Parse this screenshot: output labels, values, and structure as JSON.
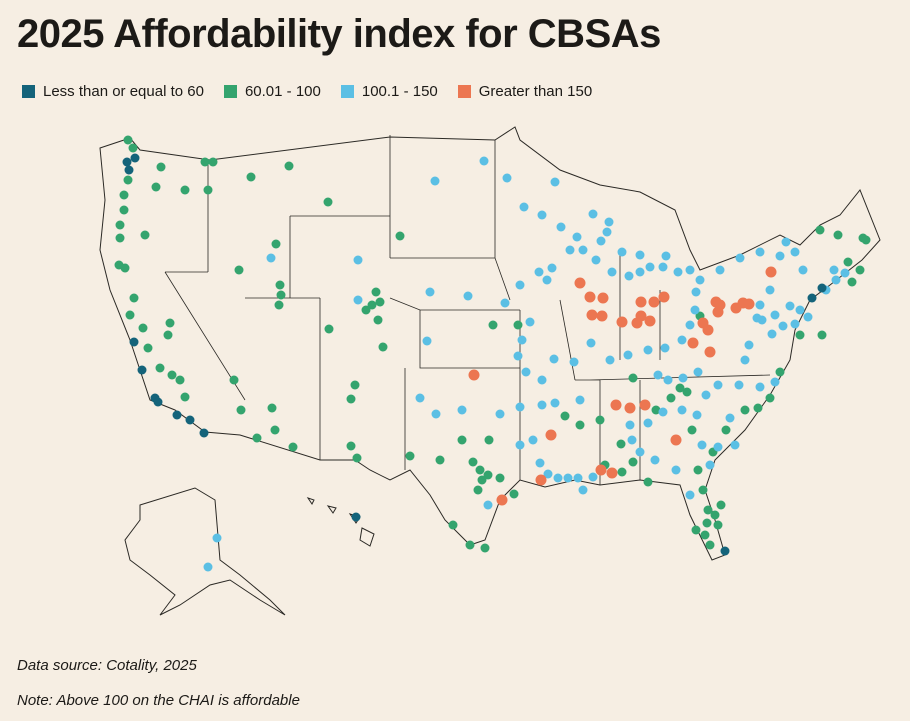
{
  "header": {
    "title": "2025 Affordability index for CBSAs"
  },
  "legend": {
    "items": [
      {
        "label": "Less than or equal to 60",
        "color": "#14637a"
      },
      {
        "label": "60.01 - 100",
        "color": "#34a46e"
      },
      {
        "label": "100.1 - 150",
        "color": "#5bbfe4"
      },
      {
        "label": "Greater than 150",
        "color": "#ec7651"
      }
    ]
  },
  "footer": {
    "source": "Data source: Cotality, 2025",
    "note": "Note: Above 100 on the CHAI is affordable"
  }
}
